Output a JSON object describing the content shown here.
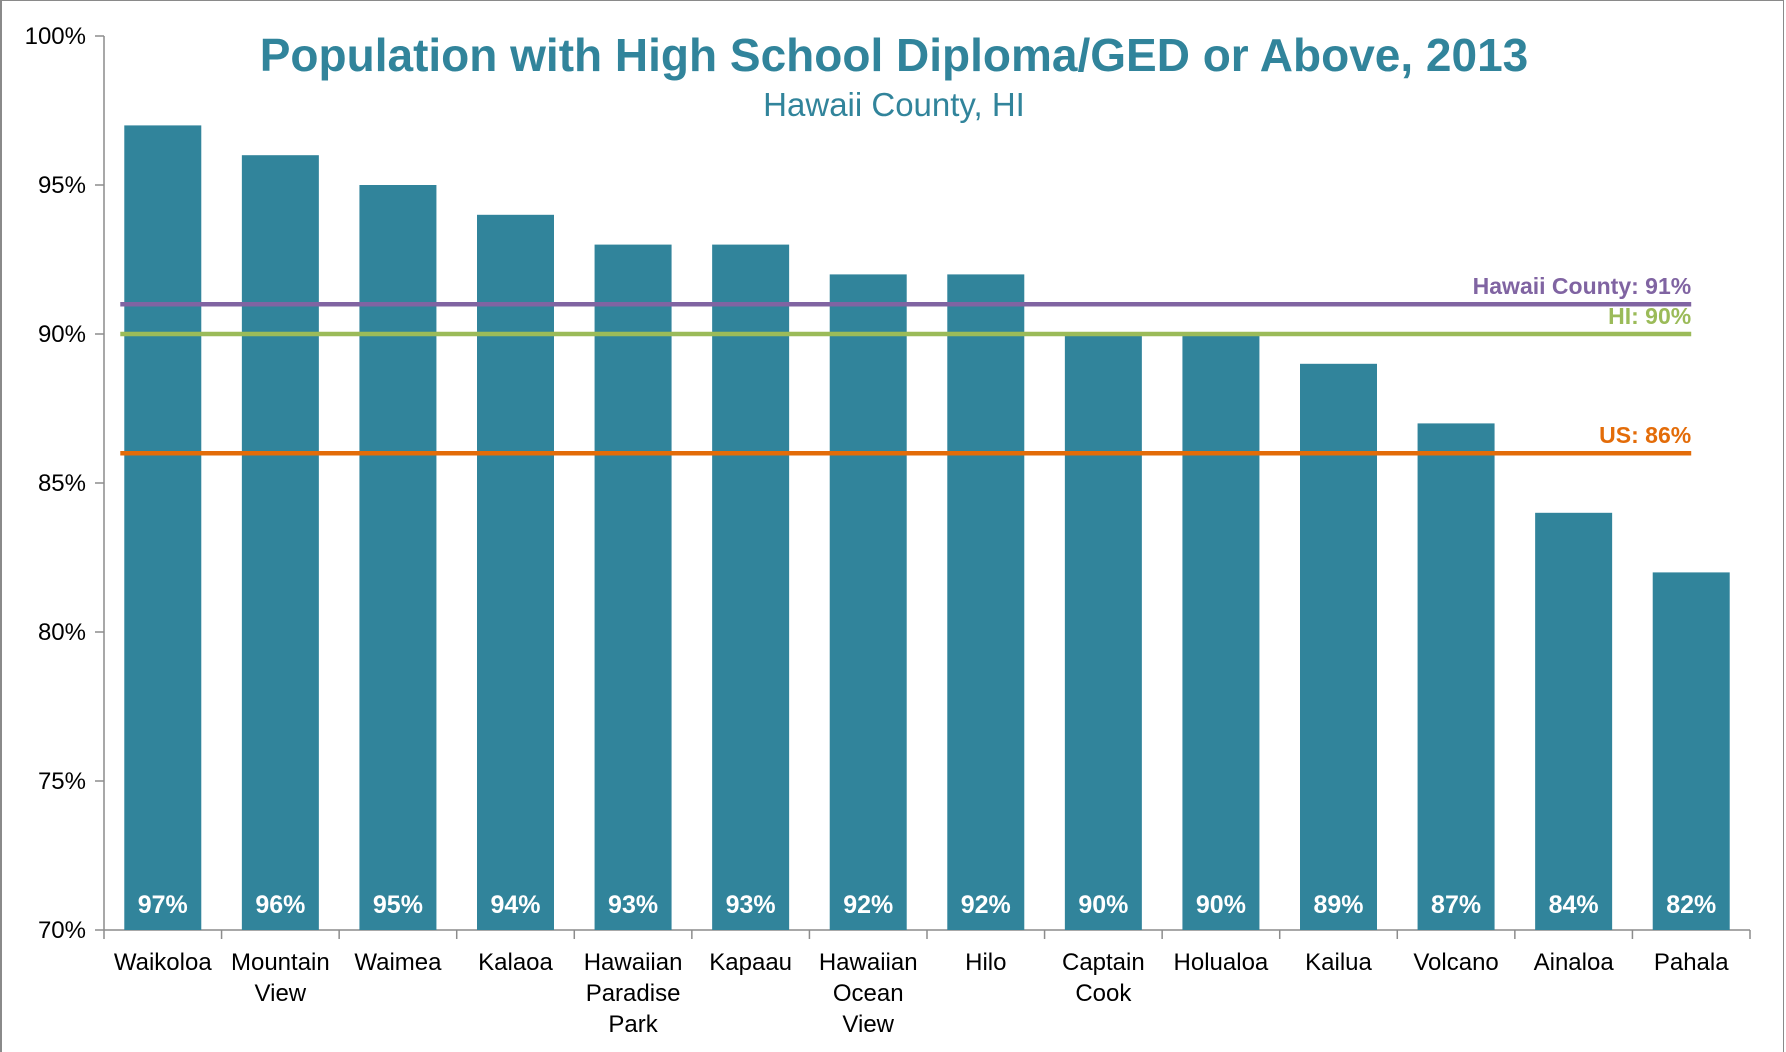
{
  "chart_data": {
    "type": "bar",
    "title": "Population with High School Diploma/GED or Above, 2013",
    "subtitle": "Hawaii County, HI",
    "xlabel": "",
    "ylabel": "",
    "ylim": [
      70,
      100
    ],
    "yticks": [
      70,
      75,
      80,
      85,
      90,
      95,
      100
    ],
    "ytick_labels": [
      "70%",
      "75%",
      "80%",
      "85%",
      "90%",
      "95%",
      "100%"
    ],
    "grid": false,
    "bar_color": "#31849b",
    "categories": [
      [
        "Waikoloa"
      ],
      [
        "Mountain",
        "View"
      ],
      [
        "Waimea"
      ],
      [
        "Kalaoa"
      ],
      [
        "Hawaiian",
        "Paradise",
        "Park"
      ],
      [
        "Kapaau"
      ],
      [
        "Hawaiian",
        "Ocean",
        "View"
      ],
      [
        "Hilo"
      ],
      [
        "Captain",
        "Cook"
      ],
      [
        "Holualoa"
      ],
      [
        "Kailua"
      ],
      [
        "Volcano"
      ],
      [
        "Ainaloa"
      ],
      [
        "Pahala"
      ]
    ],
    "values": [
      97,
      96,
      95,
      94,
      93,
      93,
      92,
      92,
      90,
      90,
      89,
      87,
      84,
      82
    ],
    "data_labels": [
      "97%",
      "96%",
      "95%",
      "94%",
      "93%",
      "93%",
      "92%",
      "92%",
      "90%",
      "90%",
      "89%",
      "87%",
      "84%",
      "82%"
    ],
    "reference_lines": [
      {
        "label": "Hawaii County: 91%",
        "value": 91,
        "color": "#8064a2"
      },
      {
        "label": "HI: 90%",
        "value": 90,
        "color": "#9bbb59"
      },
      {
        "label": "US: 86%",
        "value": 86,
        "color": "#e36c09"
      }
    ]
  }
}
